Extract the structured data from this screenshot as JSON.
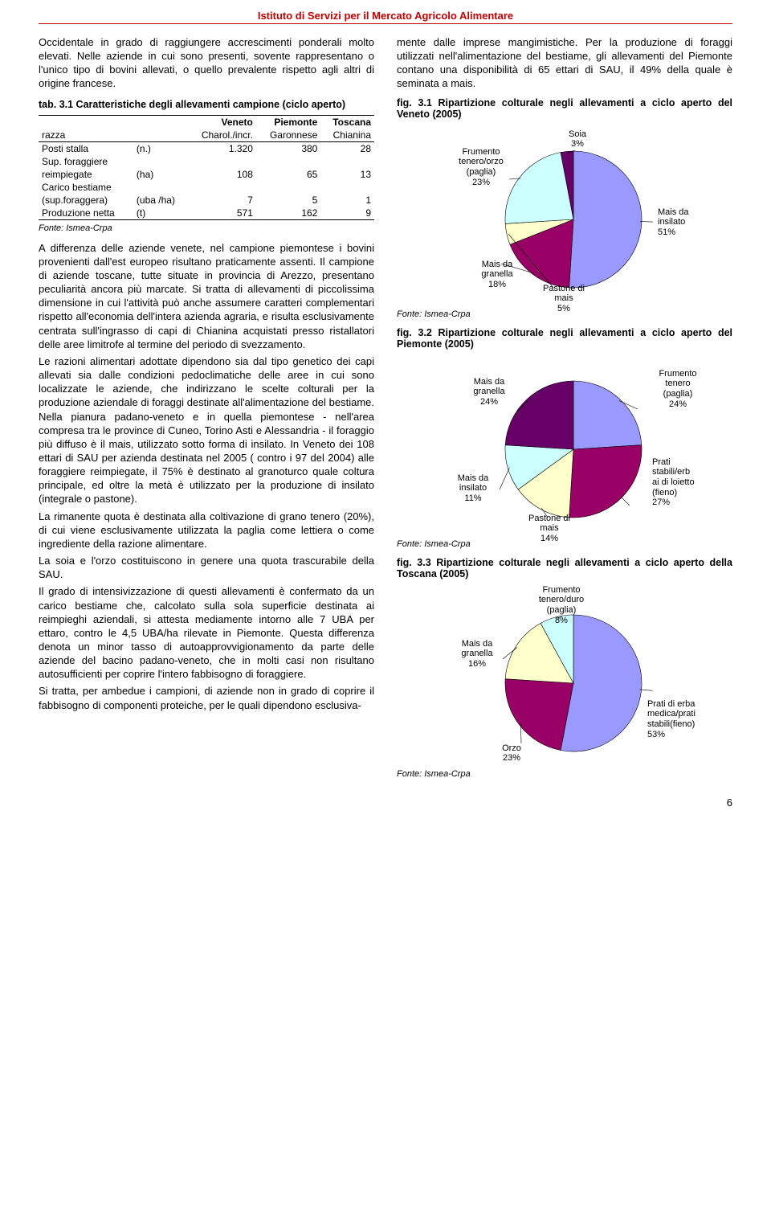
{
  "header": "Istituto di Servizi per il Mercato Agricolo Alimentare",
  "page_number": "6",
  "palette": {
    "red": "#c00000",
    "lilac": "#9999ff",
    "magenta": "#990066",
    "cream": "#ffffcc",
    "paleblue": "#ccffff",
    "plum": "#660066",
    "yellow": "#ffcc00",
    "skyblue": "#99ccff"
  },
  "left": {
    "p1": "Occidentale in grado di raggiungere accrescimenti ponderali molto elevati. Nelle aziende in cui sono presenti, sovente rappresentano o l'unico tipo di bovini allevati, o quello prevalente rispetto agli altri di origine francese.",
    "tab_title": "tab. 3.1 Caratteristiche degli allevamenti campione (ciclo aperto)",
    "table": {
      "cols": [
        {
          "l1": "",
          "l2": ""
        },
        {
          "l1": "",
          "l2": ""
        },
        {
          "l1": "Veneto",
          "l2": "Charol./incr."
        },
        {
          "l1": "Piemonte",
          "l2": "Garonnese"
        },
        {
          "l1": "Toscana",
          "l2": "Chianina"
        }
      ],
      "rows": [
        {
          "l1": "Posti stalla",
          "l2": "",
          "u": "(n.)",
          "v": [
            "1.320",
            "380",
            "28"
          ]
        },
        {
          "l1": "Sup. foraggiere",
          "l2": "reimpiegate",
          "u": "(ha)",
          "v": [
            "108",
            "65",
            "13"
          ]
        },
        {
          "l1": "Carico bestiame",
          "l2": "(sup.foraggera)",
          "u": "(uba /ha)",
          "v": [
            "7",
            "5",
            "1"
          ]
        },
        {
          "l1": "Produzione netta",
          "l2": "",
          "u": "(t)",
          "v": [
            "571",
            "162",
            "9"
          ]
        }
      ],
      "fonte": "Fonte: Ismea-Crpa"
    },
    "p2": "A differenza delle aziende venete, nel campione piemontese i bovini provenienti dall'est europeo risultano praticamente assenti. Il campione di aziende toscane, tutte situate in provincia di Arezzo, presentano peculiarità ancora più marcate. Si tratta di allevamenti di piccolissima dimensione in cui l'attività può anche assumere caratteri complementari rispetto all'economia dell'intera azienda agraria, e risulta esclusivamente centrata sull'ingrasso di capi di Chianina acquistati presso ristallatori delle aree limitrofe al termine del periodo di svezzamento.",
    "p3": "Le razioni alimentari adottate dipendono sia dal tipo genetico dei capi allevati sia dalle condizioni pedoclimatiche delle aree in cui sono localizzate le aziende, che indirizzano le scelte colturali per la produzione aziendale di foraggi destinate all'alimentazione del bestiame. Nella pianura padano-veneto e in quella piemontese - nell'area compresa tra le province di Cuneo, Torino Asti e Alessandria - il foraggio più diffuso è il mais, utilizzato sotto forma di insilato. In Veneto dei 108 ettari di SAU per azienda destinata nel 2005 ( contro i 97 del 2004) alle foraggiere reimpiegate, il 75% è destinato al granoturco quale coltura principale, ed oltre la metà è utilizzato per la produzione di insilato (integrale o pastone).",
    "p4": "La rimanente quota è destinata alla coltivazione di grano tenero (20%), di cui viene esclusivamente utilizzata la paglia come lettiera o come ingrediente della razione alimentare.",
    "p5": "La soia e l'orzo costituiscono in genere una quota trascurabile della SAU.",
    "p6": "Il grado di intensivizzazione di questi allevamenti è confermato da un carico bestiame che, calcolato sulla sola superficie destinata ai reimpieghi aziendali, si attesta mediamente intorno alle 7 UBA per ettaro, contro le 4,5 UBA/ha rilevate in Piemonte. Questa differenza denota un minor tasso di autoapprovvigionamento da parte delle aziende del bacino padano-veneto, che in molti casi non risultano autosufficienti per coprire l'intero fabbisogno di foraggiere.",
    "p7": "Si tratta, per ambedue i campioni, di aziende non in grado di coprire il fabbisogno di componenti proteiche, per le quali dipendono esclusiva-"
  },
  "right": {
    "p1": "mente dalle imprese mangimistiche. Per la produzione di foraggi utilizzati nell'alimentazione del bestiame, gli allevamenti del Piemonte contano una disponibilità di 65 ettari di SAU, il 49% della quale è seminata a mais.",
    "figs": {
      "f1": {
        "title": "fig. 3.1 Ripartizione colturale negli allevamenti a ciclo aperto del Veneto (2005)",
        "slices": [
          {
            "label": "Mais da insilato",
            "pct": "51%",
            "color": "#9999ff"
          },
          {
            "label": "Mais da granella",
            "pct": "18%",
            "color": "#990066"
          },
          {
            "label": "Pastone di mais",
            "pct": "5%",
            "color": "#ffffcc"
          },
          {
            "label": "Frumento tenero/orzo (paglia)",
            "pct": "23%",
            "color": "#ccffff"
          },
          {
            "label": "Soia",
            "pct": "3%",
            "color": "#660066"
          }
        ],
        "fonte": "Fonte: Ismea-Crpa"
      },
      "f2": {
        "title": "fig. 3.2 Ripartizione colturale negli allevamenti a ciclo aperto del Piemonte (2005)",
        "slices": [
          {
            "label": "Frumento tenero (paglia)",
            "pct": "24%",
            "color": "#9999ff"
          },
          {
            "label": "Prati stabili/erb ai di loietto (fieno)",
            "pct": "27%",
            "color": "#990066"
          },
          {
            "label": "Pastone di mais",
            "pct": "14%",
            "color": "#ffffcc"
          },
          {
            "label": "Mais da insilato",
            "pct": "11%",
            "color": "#ccffff"
          },
          {
            "label": "Mais da granella",
            "pct": "24%",
            "color": "#660066"
          }
        ],
        "fonte": "Fonte: Ismea-Crpa"
      },
      "f3": {
        "title": "fig. 3.3 Ripartizione colturale negli allevamenti a ciclo aperto della Toscana (2005)",
        "slices": [
          {
            "label": "Prati di erba medica/prati stabili(fieno)",
            "pct": "53%",
            "color": "#9999ff"
          },
          {
            "label": "Orzo",
            "pct": "23%",
            "color": "#990066"
          },
          {
            "label": "Mais da granella",
            "pct": "16%",
            "color": "#ffffcc"
          },
          {
            "label": "Frumento tenero/duro (paglia)",
            "pct": "8%",
            "color": "#ccffff"
          }
        ],
        "fonte": "Fonte: Ismea-Crpa"
      }
    }
  }
}
